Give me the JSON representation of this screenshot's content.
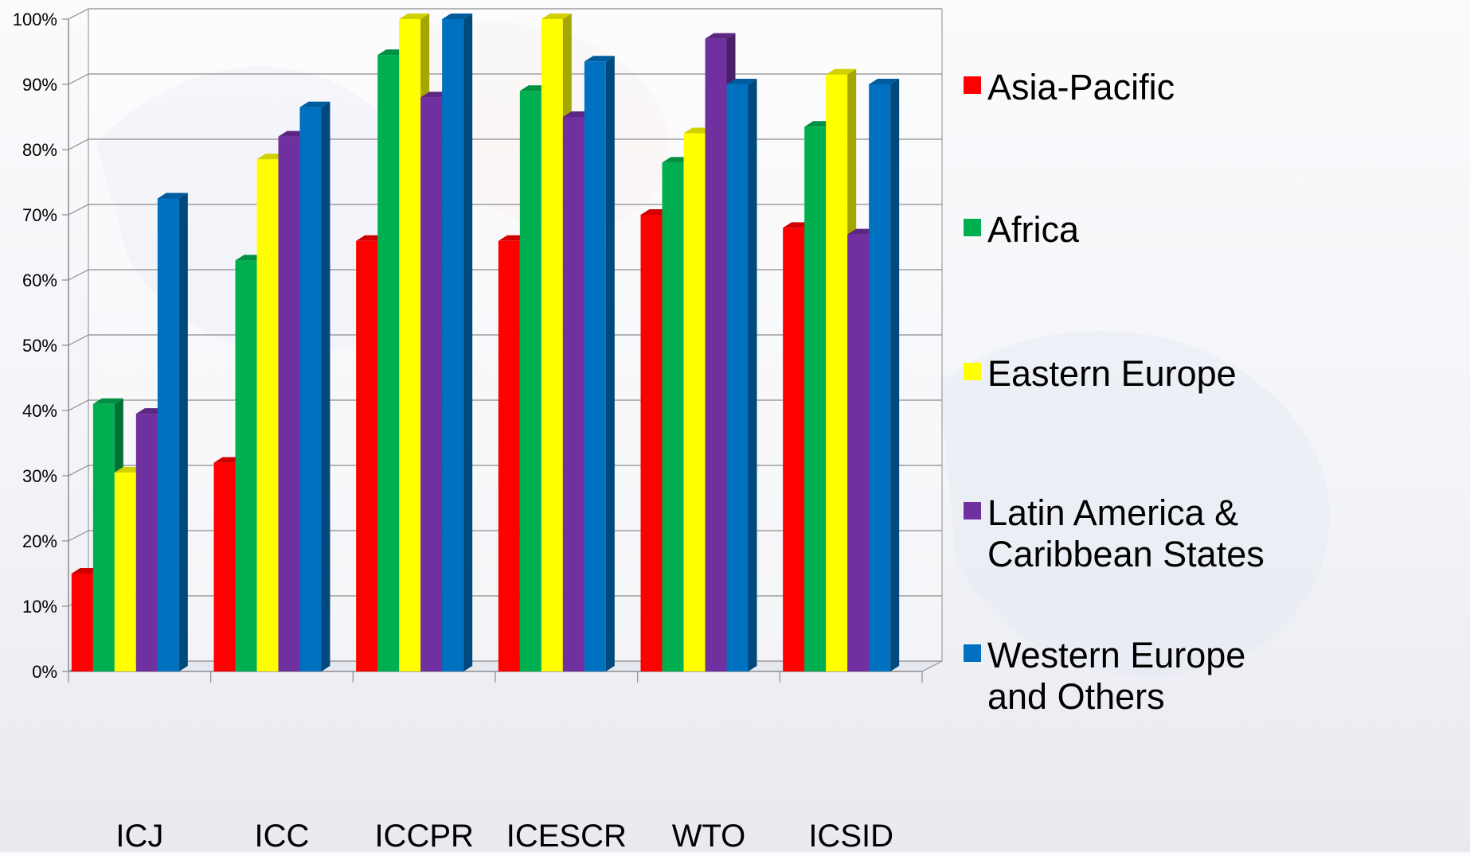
{
  "chart_data": {
    "type": "bar",
    "title": "",
    "xlabel": "",
    "ylabel": "",
    "ylim": [
      0,
      100
    ],
    "y_unit": "%",
    "y_ticks": [
      "0%",
      "10%",
      "20%",
      "30%",
      "40%",
      "50%",
      "60%",
      "70%",
      "80%",
      "90%",
      "100%"
    ],
    "categories": [
      "ICJ",
      "ICC",
      "ICCPR",
      "ICESCR",
      "WTO",
      "ICSID"
    ],
    "grid": true,
    "legend_position": "right",
    "series": [
      {
        "name": "Asia-Pacific",
        "color": "#ff0000",
        "values": [
          15,
          32,
          66,
          66,
          70,
          68
        ]
      },
      {
        "name": "Africa",
        "color": "#00b050",
        "values": [
          41,
          63,
          94.5,
          89,
          78,
          83.5
        ]
      },
      {
        "name": "Eastern Europe",
        "color": "#ffff00",
        "values": [
          30.5,
          78.5,
          100,
          100,
          82.5,
          91.5
        ]
      },
      {
        "name": "Latin America & Caribbean States",
        "legend_lines": [
          "Latin America &",
          "Caribbean States"
        ],
        "color": "#7030a0",
        "values": [
          39.5,
          82,
          88,
          85,
          97,
          67
        ]
      },
      {
        "name": "Western Europe and Others",
        "legend_lines": [
          "Western Europe",
          "and Others"
        ],
        "color": "#0070c0",
        "values": [
          72.5,
          86.5,
          100,
          93.5,
          90,
          90
        ]
      }
    ]
  }
}
